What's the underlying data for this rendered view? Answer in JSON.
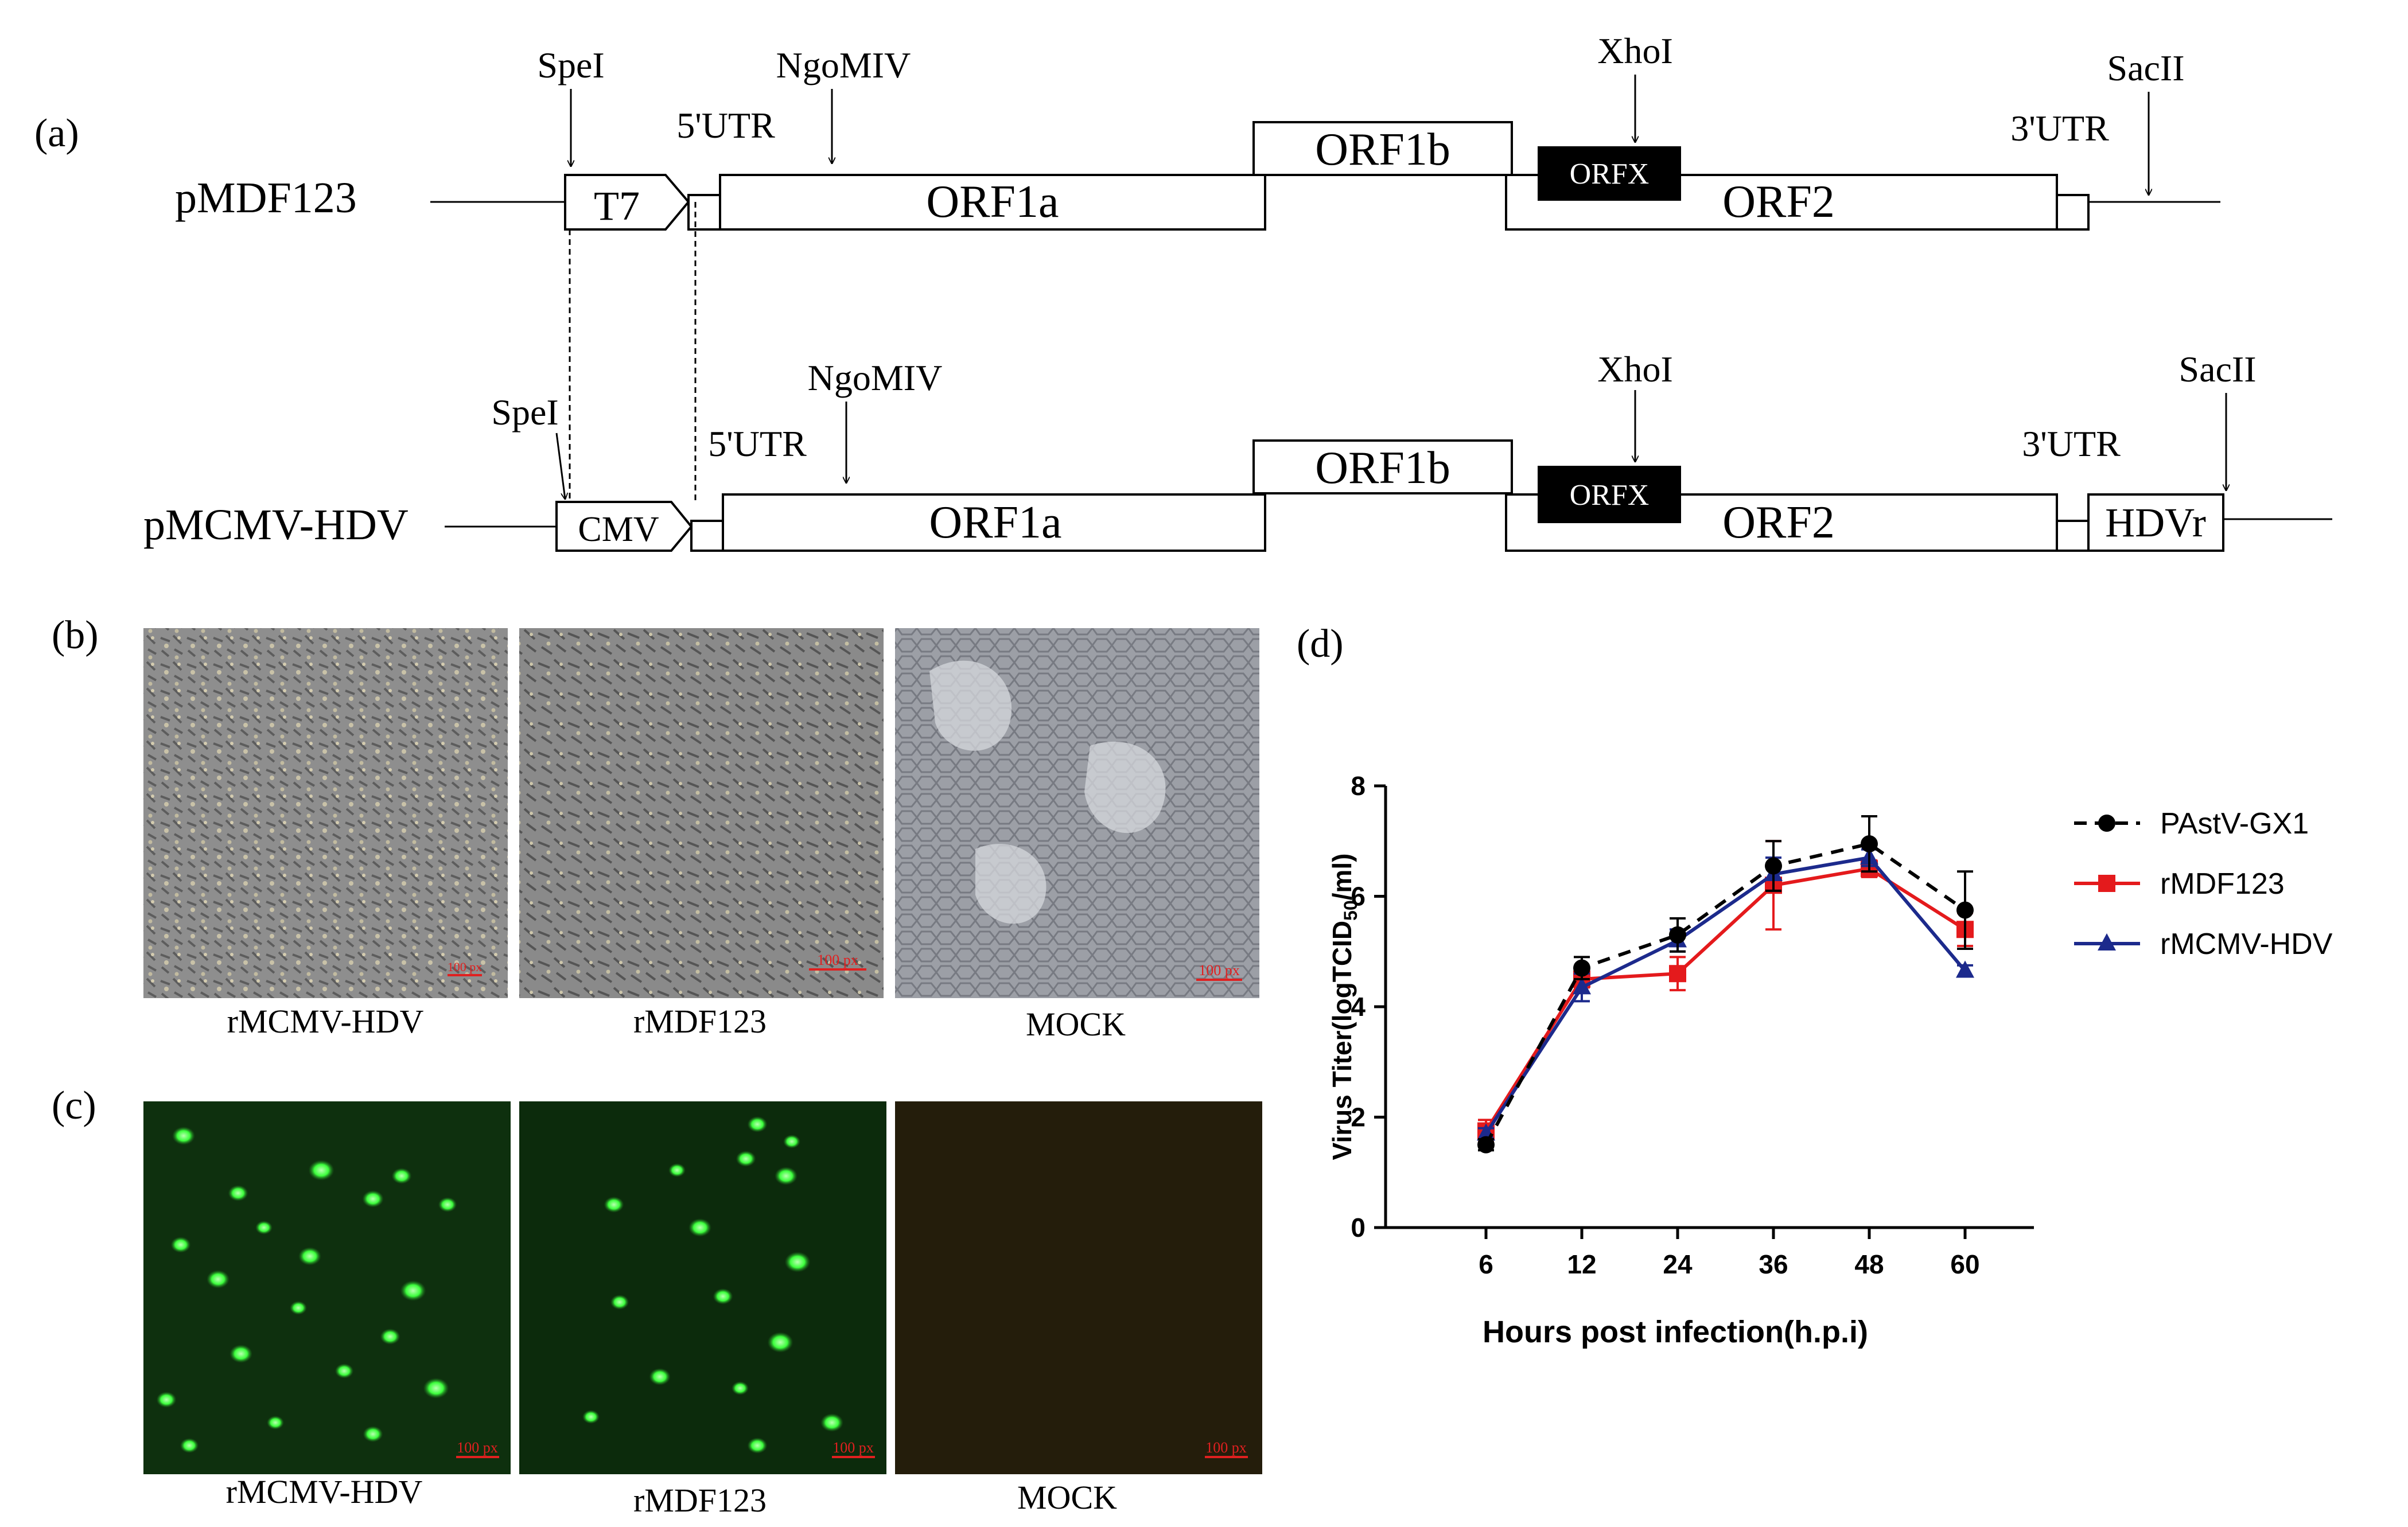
{
  "panel_labels": {
    "a": "(a)",
    "b": "(b)",
    "c": "(c)",
    "d": "(d)"
  },
  "construct_top": {
    "name": "pMDF123",
    "promoter": "T7",
    "utr5": "5'UTR",
    "utr3": "3'UTR",
    "orf1a": "ORF1a",
    "orf1b": "ORF1b",
    "orfx": "ORFX",
    "orf2": "ORF2",
    "sites": {
      "spe": "SpeI",
      "ngo": "NgoMIV",
      "xho": "XhoI",
      "sac": "SacII"
    }
  },
  "construct_bottom": {
    "name": "pMCMV-HDV",
    "promoter": "CMV",
    "utr5": "5'UTR",
    "utr3": "3'UTR",
    "orf1a": "ORF1a",
    "orf1b": "ORF1b",
    "orfx": "ORFX",
    "orf2": "ORF2",
    "ribozyme": "HDVr",
    "sites": {
      "spe": "SpeI",
      "ngo": "NgoMIV",
      "xho": "XhoI",
      "sac": "SacII"
    }
  },
  "micrographs_b": [
    {
      "caption": "rMCMV-HDV",
      "scale": "100 px"
    },
    {
      "caption": "rMDF123",
      "scale": "100 px"
    },
    {
      "caption": "MOCK",
      "scale": "100 px"
    }
  ],
  "micrographs_c": [
    {
      "caption": "rMCMV-HDV",
      "scale": "100 px"
    },
    {
      "caption": "rMDF123",
      "scale": "100 px"
    },
    {
      "caption": "MOCK",
      "scale": "100 px"
    }
  ],
  "colors": {
    "phase_contrast": "#8c8c8c",
    "fluor_bg": "#0e300e",
    "fluor_cell": "#3cff3c",
    "mock_fluor": "#241d0b",
    "scale_bar": "#e02020",
    "series_pastv": "#000000",
    "series_rmdf": "#e41a1c",
    "series_rmcmv": "#1c2a8c"
  },
  "chart_data": {
    "type": "line",
    "xlabel": "Hours post infection(h.p.i)",
    "ylabel_main": "Virus Titer(logTCID",
    "ylabel_sub": "50",
    "ylabel_tail": "/ml)",
    "categories": [
      "6",
      "12",
      "24",
      "36",
      "48",
      "60"
    ],
    "yticks": [
      "0",
      "2",
      "4",
      "6",
      "8"
    ],
    "ylim": [
      0,
      8
    ],
    "grid": false,
    "legend_position": "right",
    "series": [
      {
        "name": "PAstV-GX1",
        "marker": "circle",
        "dashed": true,
        "values": [
          1.5,
          4.7,
          5.3,
          6.55,
          6.95,
          5.75
        ],
        "errors": [
          0.1,
          0.2,
          0.3,
          0.45,
          0.5,
          0.7
        ]
      },
      {
        "name": "rMDF123",
        "marker": "square",
        "dashed": false,
        "values": [
          1.75,
          4.5,
          4.6,
          6.2,
          6.5,
          5.4
        ],
        "errors": [
          0.2,
          0.15,
          0.3,
          0.8,
          0.15,
          0.3
        ]
      },
      {
        "name": "rMCMV-HDV",
        "marker": "triangle",
        "dashed": false,
        "values": [
          1.7,
          4.35,
          5.2,
          6.4,
          6.7,
          4.65
        ],
        "errors": [
          0.1,
          0.25,
          0.2,
          0.3,
          0.15,
          0.1
        ]
      }
    ]
  }
}
